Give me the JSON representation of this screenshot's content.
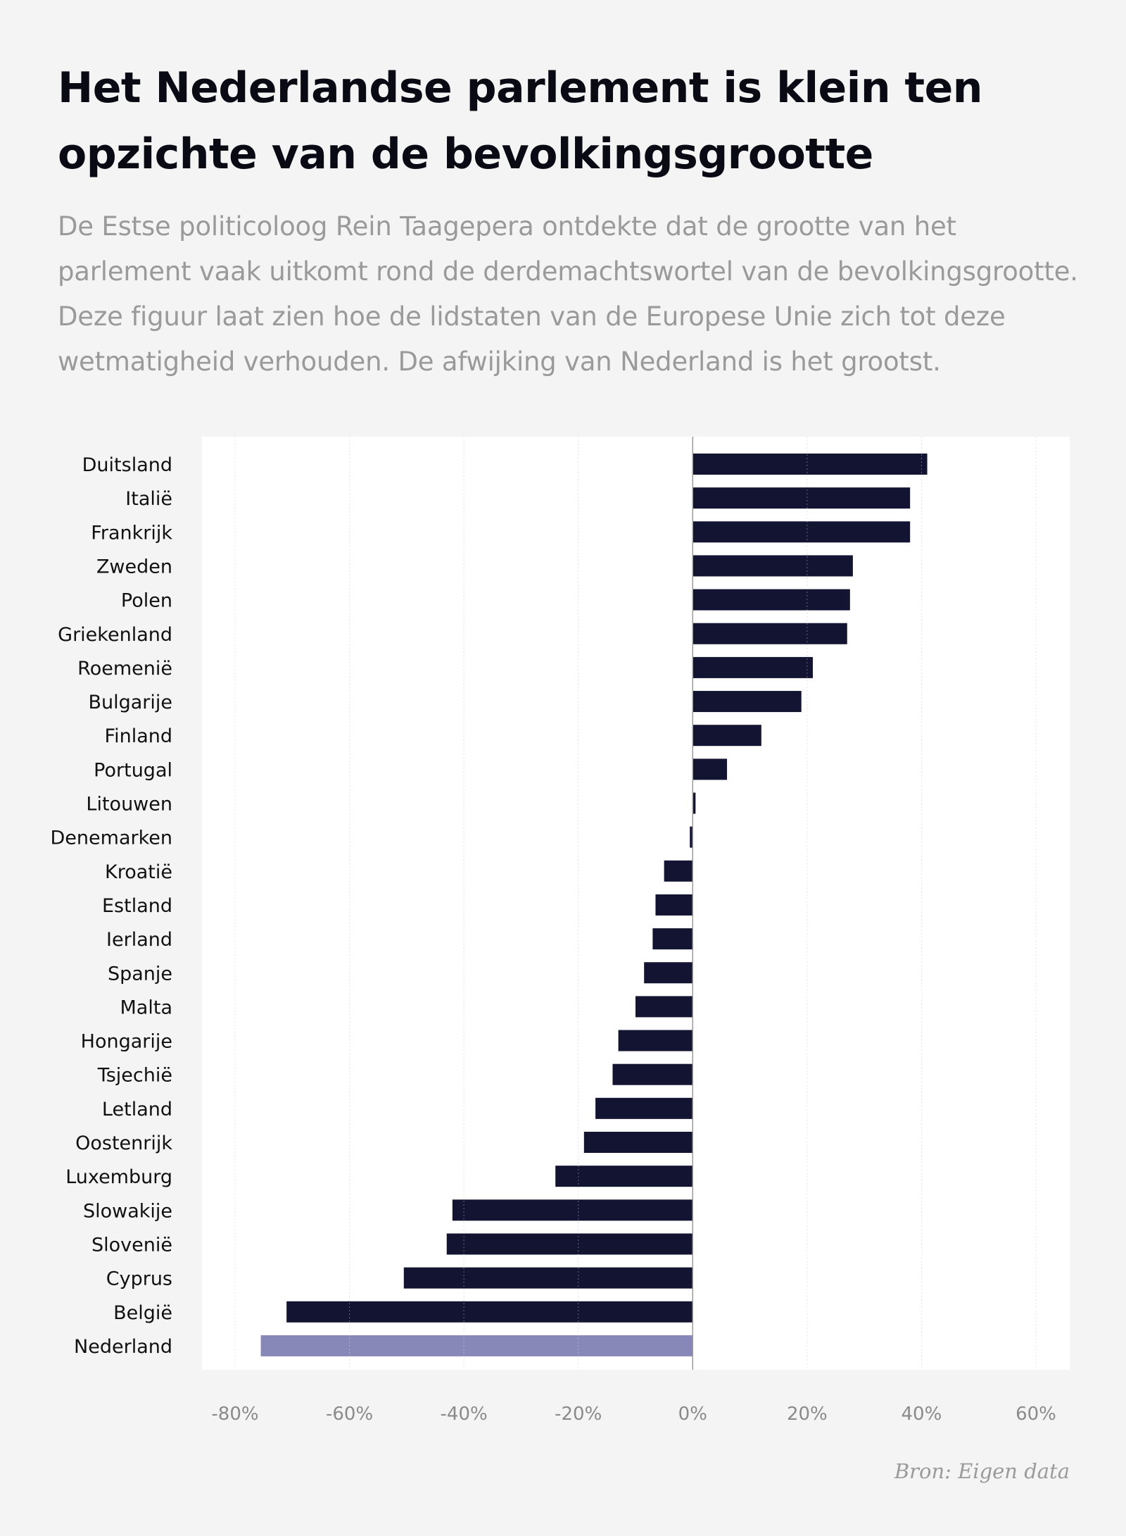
{
  "title": "Het Nederlandse parlement is klein ten opzichte van de bevolkingsgrootte",
  "subtitle": "De Estse politicoloog Rein Taagepera ontdekte dat de grootte van het parlement vaak uitkomt rond de derdemachtswortel van de bevolkingsgrootte. Deze figuur laat zien hoe de lidstaten van de Europese Unie zich tot deze wetmatigheid verhouden. De afwijking van Nederland is het grootst.",
  "source": "Bron: Eigen data",
  "colors": {
    "bar": "#131432",
    "highlight": "#8888b8",
    "plot_background": "#ffffff",
    "page_background": "#f4f4f4"
  },
  "chart_data": {
    "type": "bar",
    "orientation": "horizontal",
    "categories": [
      "Duitsland",
      "Italië",
      "Frankrijk",
      "Zweden",
      "Polen",
      "Griekenland",
      "Roemenië",
      "Bulgarije",
      "Finland",
      "Portugal",
      "Litouwen",
      "Denemarken",
      "Kroatië",
      "Estland",
      "Ierland",
      "Spanje",
      "Malta",
      "Hongarije",
      "Tsjechië",
      "Letland",
      "Oostenrijk",
      "Luxemburg",
      "Slowakije",
      "Slovenië",
      "Cyprus",
      "België",
      "Nederland"
    ],
    "values": [
      41,
      38,
      38,
      28,
      27.5,
      27,
      21,
      19,
      12,
      6,
      0.5,
      -0.5,
      -5,
      -6.5,
      -7,
      -8.5,
      -10,
      -13,
      -14,
      -17,
      -19,
      -24,
      -42,
      -43,
      -50.5,
      -71,
      -75.5
    ],
    "highlight": "Nederland",
    "xlim": [
      -80,
      60
    ],
    "xticks": [
      -80,
      -60,
      -40,
      -20,
      0,
      20,
      40,
      60
    ],
    "xtick_labels": [
      "-80%",
      "-60%",
      "-40%",
      "-20%",
      "0%",
      "20%",
      "40%",
      "60%"
    ],
    "grid": true,
    "legend": "none",
    "xlabel": "",
    "ylabel": ""
  }
}
